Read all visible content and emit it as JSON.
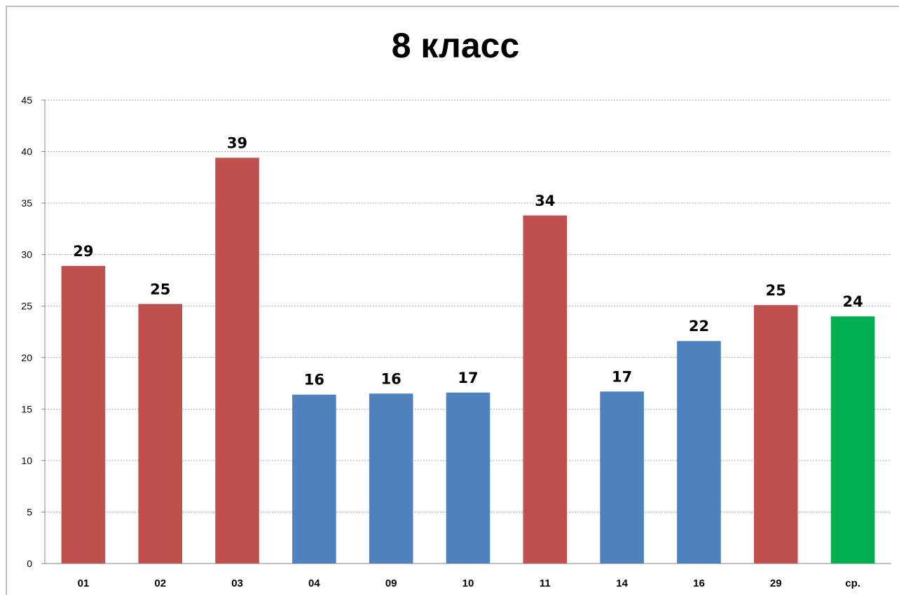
{
  "chart_data": {
    "type": "bar",
    "title": "8 класс",
    "xlabel": "",
    "ylabel": "",
    "ylim": [
      0,
      45
    ],
    "yticks": [
      0,
      5,
      10,
      15,
      20,
      25,
      30,
      35,
      40,
      45
    ],
    "grid": true,
    "legend": "none",
    "categories": [
      "01",
      "02",
      "03",
      "04",
      "09",
      "10",
      "11",
      "14",
      "16",
      "29",
      "ср."
    ],
    "values": [
      28.9,
      25.2,
      39.4,
      16.4,
      16.5,
      16.6,
      33.8,
      16.7,
      21.6,
      25.1,
      24.0
    ],
    "data_labels": [
      "29",
      "25",
      "39",
      "16",
      "16",
      "17",
      "34",
      "17",
      "22",
      "25",
      "24"
    ],
    "bar_colors": [
      "#c0504d",
      "#c0504d",
      "#c0504d",
      "#4f81bd",
      "#4f81bd",
      "#4f81bd",
      "#c0504d",
      "#4f81bd",
      "#4f81bd",
      "#c0504d",
      "#00b050"
    ]
  }
}
